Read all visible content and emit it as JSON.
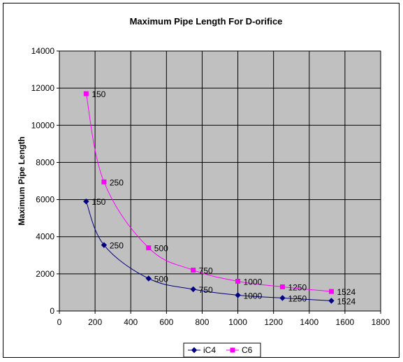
{
  "chart_data": {
    "type": "line",
    "title": "Maximum Pipe Length For D-orifice",
    "xlabel": "",
    "ylabel": "Maximum Pipe Length",
    "xlim": [
      0,
      1800
    ],
    "ylim": [
      0,
      14000
    ],
    "xticks": [
      0,
      200,
      400,
      600,
      800,
      1000,
      1200,
      1400,
      1600,
      1800
    ],
    "yticks": [
      0,
      2000,
      4000,
      6000,
      8000,
      10000,
      12000,
      14000
    ],
    "grid": true,
    "legend_position": "bottom",
    "plot_background": "#c0c0c0",
    "series": [
      {
        "name": "iC4",
        "color": "#000080",
        "marker": "diamond",
        "x": [
          150,
          250,
          500,
          750,
          1000,
          1250,
          1524
        ],
        "y": [
          5900,
          3550,
          1750,
          1170,
          850,
          700,
          550
        ],
        "labels": [
          "150",
          "250",
          "500",
          "750",
          "1000",
          "1250",
          "1524"
        ]
      },
      {
        "name": "C6",
        "color": "#ff00ff",
        "marker": "square",
        "x": [
          150,
          250,
          500,
          750,
          1000,
          1250,
          1524
        ],
        "y": [
          11700,
          6950,
          3400,
          2200,
          1600,
          1300,
          1050
        ],
        "labels": [
          "150",
          "250",
          "500",
          "750",
          "1000",
          "1250",
          "1524"
        ]
      }
    ]
  }
}
